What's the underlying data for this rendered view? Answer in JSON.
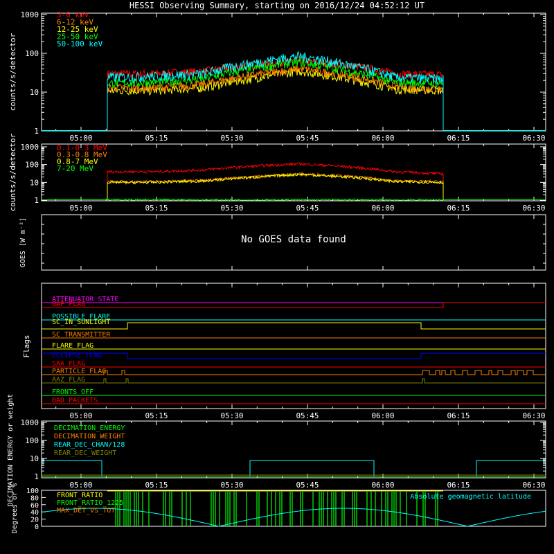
{
  "title": "HESSI Observing Summary, starting on 2016/12/24 04:52:12 UT",
  "chart_data": [
    {
      "type": "line",
      "panel": "energy-low",
      "ylabel": "counts/s/detector",
      "yscale": "log",
      "ylim": [
        1,
        1000
      ],
      "yticks": [
        "1",
        "10",
        "100",
        "1000"
      ],
      "xticks": [
        "05:00",
        "05:15",
        "05:30",
        "05:45",
        "06:00",
        "06:15",
        "06:30"
      ],
      "xlim_minutes": [
        0,
        100
      ],
      "series": [
        {
          "name": "3-6 keV",
          "color": "#ff0000",
          "data_start": "04:55",
          "data_end": "06:11",
          "values": [
            1,
            30,
            30,
            35,
            50,
            65,
            50,
            30,
            28
          ]
        },
        {
          "name": "6-12 keV",
          "color": "#ff8000",
          "values": [
            1,
            13,
            13,
            16,
            27,
            40,
            27,
            14,
            12
          ]
        },
        {
          "name": "12-25 keV",
          "color": "#ffff00",
          "values": [
            1,
            11,
            11,
            13,
            22,
            35,
            22,
            12,
            11
          ]
        },
        {
          "name": "25-50 keV",
          "color": "#00ff00",
          "values": [
            1,
            17,
            18,
            22,
            40,
            60,
            35,
            18,
            17
          ]
        },
        {
          "name": "50-100 keV",
          "color": "#00ffff",
          "values": [
            1,
            24,
            26,
            30,
            55,
            85,
            50,
            24,
            22
          ]
        }
      ]
    },
    {
      "type": "line",
      "panel": "energy-high",
      "ylabel": "counts/s/detector",
      "yscale": "log",
      "ylim": [
        1,
        1000
      ],
      "yticks": [
        "1",
        "10",
        "100",
        "1000"
      ],
      "series": [
        {
          "name": "0.1-0.3 MeV",
          "color": "#ff0000",
          "values": [
            1,
            40,
            40,
            50,
            80,
            110,
            75,
            40,
            30
          ]
        },
        {
          "name": "0.3-0.8 MeV",
          "color": "#ff8000",
          "values": [
            1,
            11,
            11,
            13,
            20,
            30,
            22,
            12,
            11
          ]
        },
        {
          "name": "0.8-7 MeV",
          "color": "#ffff00",
          "values": [
            1,
            10,
            10,
            12,
            19,
            28,
            20,
            11,
            10
          ]
        },
        {
          "name": "7-20 MeV",
          "color": "#00ff00",
          "values": [
            1,
            1,
            1,
            1,
            1,
            1,
            1,
            1,
            1
          ]
        }
      ]
    },
    {
      "type": "line",
      "panel": "goes",
      "ylabel": "GOES [W m⁻²]",
      "message": "No GOES data found"
    },
    {
      "type": "line",
      "panel": "flags",
      "ylabel": "Flags",
      "flags": [
        {
          "name": "ATTENUATOR_STATE",
          "color": "#ff00ff"
        },
        {
          "name": "GAP_FLAG",
          "color": "#ff0000"
        },
        {
          "name": "POSSIBLE_FLARE",
          "color": "#00ffff"
        },
        {
          "name": "SC_IN_SUNLIGHT",
          "color": "#ffff00"
        },
        {
          "name": "SC_TRANSMITTER",
          "color": "#ff8000"
        },
        {
          "name": "FLARE_FLAG",
          "color": "#ffff00"
        },
        {
          "name": "ECLIPSE_FLAG",
          "color": "#0000ff"
        },
        {
          "name": "SAA_FLAG",
          "color": "#ff0000"
        },
        {
          "name": "PARTICLE_FLAG",
          "color": "#ff8000"
        },
        {
          "name": "AAZ_FLAG",
          "color": "#808000"
        },
        {
          "name": "FRONTS_OFF",
          "color": "#00ff00"
        },
        {
          "name": "BAD_PACKETS",
          "color": "#ff0000"
        }
      ]
    },
    {
      "type": "line",
      "panel": "decimation",
      "ylabel": "DECIMATION ENERGY or weight",
      "yscale": "log",
      "ylim": [
        1,
        1000
      ],
      "yticks": [
        "1",
        "10",
        "100",
        "1000"
      ],
      "series": [
        {
          "name": "DECIMATION_ENERGY",
          "color": "#00ff00"
        },
        {
          "name": "DECIMATION_WEIGHT",
          "color": "#ff8000"
        },
        {
          "name": "REAR_DEC_CHAN/128",
          "color": "#00ffff"
        },
        {
          "name": "REAR_DEC_WEIGHT",
          "color": "#808000"
        }
      ]
    },
    {
      "type": "line",
      "panel": "ratios",
      "ylabel": "Degrees or %",
      "ylim": [
        0,
        100
      ],
      "yticks": [
        "0",
        "20",
        "40",
        "60",
        "80",
        "100"
      ],
      "series": [
        {
          "name": "FRONT_RATIO",
          "color": "#ffff00"
        },
        {
          "name": "FRONT_RATIO_1225",
          "color": "#00ff00"
        },
        {
          "name": "MAX_DET_VS_TOT",
          "color": "#ff8000"
        },
        {
          "name": "Absolute geomagnetic latitude",
          "color": "#00ffff"
        }
      ]
    }
  ]
}
